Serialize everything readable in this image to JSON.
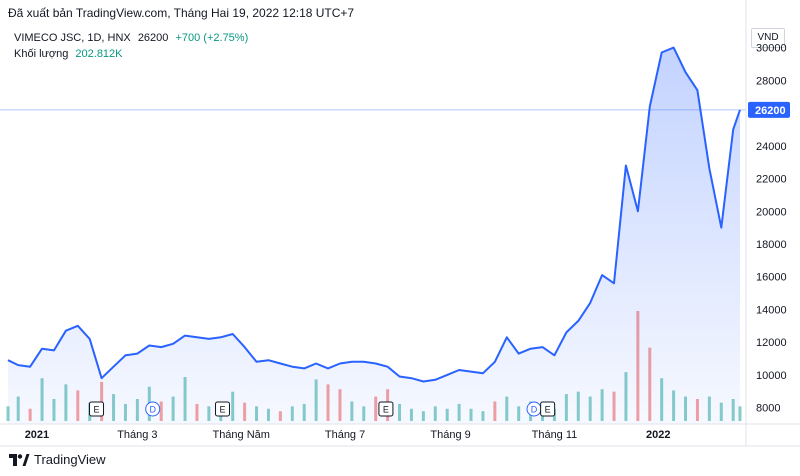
{
  "export_text": "Đã xuất bản TradingView.com, Tháng Hai 19, 2022 12:18 UTC+7",
  "legend": {
    "symbol": "VIMECO JSC, 1D, HNX",
    "last": "26200",
    "change": "+700 (+2.75%)",
    "volume_label": "Khối lượng",
    "volume_value": "202.812K"
  },
  "currency": "VND",
  "footer_brand": "TradingView",
  "colors": {
    "line": "#2962ff",
    "area": "#2962ff",
    "vol_up": "#26a69a",
    "vol_down": "#ef5350",
    "price_tag": "#2962ff",
    "event": "#131722",
    "dividend": "#2962ff"
  },
  "chart_data": {
    "type": "area",
    "x": [
      "2020-12-15",
      "2020-12-21",
      "2020-12-28",
      "2021-01-04",
      "2021-01-11",
      "2021-01-18",
      "2021-01-25",
      "2021-02-01",
      "2021-02-08",
      "2021-02-15",
      "2021-02-22",
      "2021-03-01",
      "2021-03-08",
      "2021-03-15",
      "2021-03-22",
      "2021-03-29",
      "2021-04-05",
      "2021-04-12",
      "2021-04-19",
      "2021-04-26",
      "2021-05-03",
      "2021-05-10",
      "2021-05-17",
      "2021-05-24",
      "2021-05-31",
      "2021-06-07",
      "2021-06-14",
      "2021-06-21",
      "2021-06-28",
      "2021-07-05",
      "2021-07-12",
      "2021-07-19",
      "2021-07-26",
      "2021-08-02",
      "2021-08-09",
      "2021-08-16",
      "2021-08-23",
      "2021-08-30",
      "2021-09-06",
      "2021-09-13",
      "2021-09-20",
      "2021-09-27",
      "2021-10-04",
      "2021-10-11",
      "2021-10-18",
      "2021-10-25",
      "2021-11-01",
      "2021-11-08",
      "2021-11-15",
      "2021-11-22",
      "2021-11-29",
      "2021-12-06",
      "2021-12-13",
      "2021-12-20",
      "2021-12-27",
      "2022-01-03",
      "2022-01-10",
      "2022-01-17",
      "2022-01-24",
      "2022-01-31",
      "2022-02-07",
      "2022-02-14",
      "2022-02-18"
    ],
    "values": [
      10900,
      10600,
      10500,
      11600,
      11500,
      12700,
      13000,
      12200,
      9800,
      10500,
      11200,
      11300,
      11800,
      11700,
      11900,
      12400,
      12300,
      12200,
      12300,
      12500,
      11700,
      10800,
      10900,
      10700,
      10500,
      10400,
      10700,
      10400,
      10700,
      10800,
      10800,
      10700,
      10500,
      9900,
      9800,
      9600,
      9700,
      10000,
      10300,
      10200,
      10100,
      10800,
      12300,
      11300,
      11600,
      11700,
      11200,
      12600,
      13300,
      14400,
      16100,
      15600,
      22800,
      20000,
      26400,
      29700,
      30000,
      28500,
      27400,
      22600,
      19000,
      25000,
      26200
    ],
    "volume": [
      {
        "v": 12,
        "up": true
      },
      {
        "v": 20,
        "up": true
      },
      {
        "v": 10,
        "up": false
      },
      {
        "v": 35,
        "up": true
      },
      {
        "v": 18,
        "up": true
      },
      {
        "v": 30,
        "up": true
      },
      {
        "v": 25,
        "up": false
      },
      {
        "v": 15,
        "up": true
      },
      {
        "v": 32,
        "up": false
      },
      {
        "v": 22,
        "up": true
      },
      {
        "v": 14,
        "up": true
      },
      {
        "v": 18,
        "up": true
      },
      {
        "v": 28,
        "up": true
      },
      {
        "v": 16,
        "up": false
      },
      {
        "v": 20,
        "up": true
      },
      {
        "v": 36,
        "up": true
      },
      {
        "v": 14,
        "up": false
      },
      {
        "v": 12,
        "up": true
      },
      {
        "v": 10,
        "up": true
      },
      {
        "v": 24,
        "up": true
      },
      {
        "v": 15,
        "up": false
      },
      {
        "v": 12,
        "up": true
      },
      {
        "v": 10,
        "up": true
      },
      {
        "v": 8,
        "up": false
      },
      {
        "v": 12,
        "up": true
      },
      {
        "v": 14,
        "up": true
      },
      {
        "v": 34,
        "up": true
      },
      {
        "v": 30,
        "up": false
      },
      {
        "v": 26,
        "up": false
      },
      {
        "v": 16,
        "up": true
      },
      {
        "v": 12,
        "up": true
      },
      {
        "v": 20,
        "up": false
      },
      {
        "v": 26,
        "up": false
      },
      {
        "v": 14,
        "up": true
      },
      {
        "v": 10,
        "up": true
      },
      {
        "v": 8,
        "up": true
      },
      {
        "v": 12,
        "up": true
      },
      {
        "v": 10,
        "up": true
      },
      {
        "v": 14,
        "up": true
      },
      {
        "v": 10,
        "up": true
      },
      {
        "v": 8,
        "up": true
      },
      {
        "v": 16,
        "up": false
      },
      {
        "v": 20,
        "up": true
      },
      {
        "v": 12,
        "up": true
      },
      {
        "v": 16,
        "up": true
      },
      {
        "v": 14,
        "up": true
      },
      {
        "v": 10,
        "up": true
      },
      {
        "v": 22,
        "up": true
      },
      {
        "v": 24,
        "up": true
      },
      {
        "v": 20,
        "up": true
      },
      {
        "v": 26,
        "up": true
      },
      {
        "v": 24,
        "up": false
      },
      {
        "v": 40,
        "up": true
      },
      {
        "v": 90,
        "up": false
      },
      {
        "v": 60,
        "up": false
      },
      {
        "v": 35,
        "up": true
      },
      {
        "v": 25,
        "up": true
      },
      {
        "v": 20,
        "up": true
      },
      {
        "v": 18,
        "up": false
      },
      {
        "v": 20,
        "up": true
      },
      {
        "v": 15,
        "up": true
      },
      {
        "v": 18,
        "up": true
      },
      {
        "v": 12,
        "up": true
      }
    ],
    "y_ticks": [
      "30000",
      "28000",
      "26000",
      "24000",
      "22000",
      "20000",
      "18000",
      "16000",
      "14000",
      "12000",
      "10000",
      "8000"
    ],
    "y_tick_values": [
      30000,
      28000,
      26000,
      24000,
      22000,
      20000,
      18000,
      16000,
      14000,
      12000,
      10000,
      8000
    ],
    "ylim": [
      7000,
      32300
    ],
    "x_ticks": [
      {
        "date": "2021-01-01",
        "label": "2021",
        "bold": true
      },
      {
        "date": "2021-03-01",
        "label": "Tháng 3",
        "bold": false
      },
      {
        "date": "2021-05-01",
        "label": "Tháng Năm",
        "bold": false
      },
      {
        "date": "2021-07-01",
        "label": "Tháng 7",
        "bold": false
      },
      {
        "date": "2021-09-01",
        "label": "Tháng 9",
        "bold": false
      },
      {
        "date": "2021-11-01",
        "label": "Tháng 11",
        "bold": false
      },
      {
        "date": "2022-01-01",
        "label": "2022",
        "bold": true
      }
    ],
    "events": [
      {
        "date": "2021-02-05",
        "label": "E",
        "kind": "earnings"
      },
      {
        "date": "2021-03-10",
        "label": "D",
        "kind": "dividend"
      },
      {
        "date": "2021-04-20",
        "label": "E",
        "kind": "earnings"
      },
      {
        "date": "2021-07-25",
        "label": "E",
        "kind": "earnings"
      },
      {
        "date": "2021-10-20",
        "label": "D",
        "kind": "dividend"
      },
      {
        "date": "2021-10-28",
        "label": "E",
        "kind": "earnings"
      }
    ],
    "last_price": 26200,
    "last_price_label": "26200",
    "grid": false
  }
}
